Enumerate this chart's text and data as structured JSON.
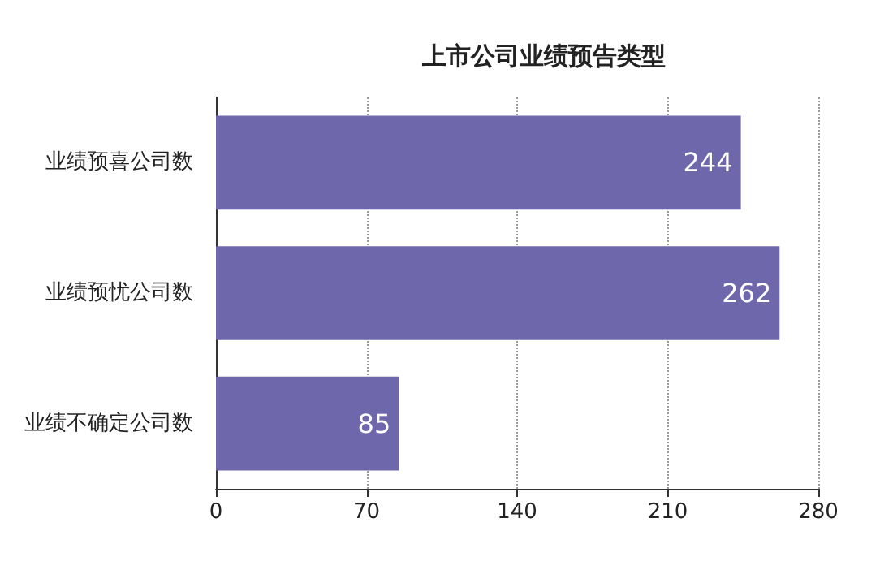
{
  "chart_data": {
    "type": "bar",
    "orientation": "horizontal",
    "title": "上市公司业绩预告类型",
    "categories": [
      "业绩预喜公司数",
      "业绩预忧公司数",
      "业绩不确定公司数"
    ],
    "values": [
      244,
      262,
      85
    ],
    "color": "#6e67ab",
    "xlim": [
      0,
      280
    ],
    "xticks": [
      0,
      70,
      140,
      210,
      280
    ],
    "grid": "x",
    "data_labels": true
  }
}
